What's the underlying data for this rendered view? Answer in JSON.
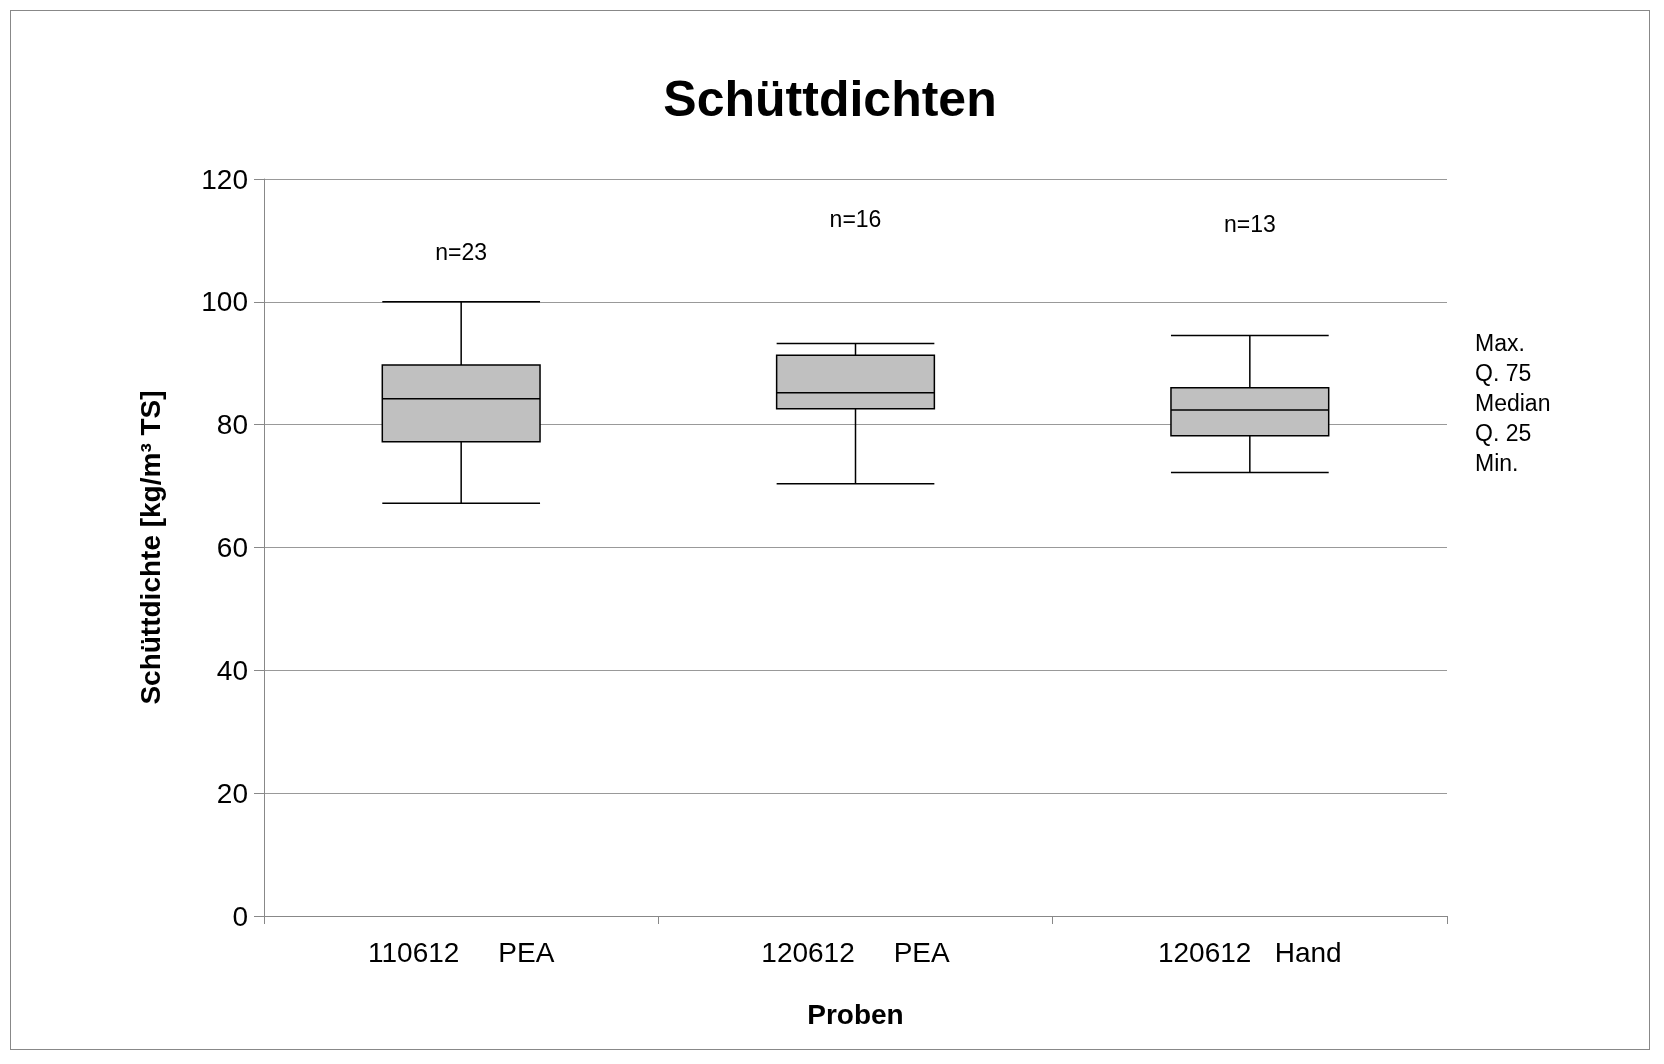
{
  "chart_data": {
    "type": "box",
    "title": "Schüttdichten",
    "xlabel": "Proben",
    "ylabel": "Schüttdichte [kg/m³ TS]",
    "categories": [
      "110612     PEA",
      "120612     PEA",
      "120612   Hand"
    ],
    "boxes": [
      {
        "low": 67.2,
        "q1": 77.2,
        "median": 84.2,
        "q3": 89.7,
        "high": 100
      },
      {
        "low": 70.4,
        "q1": 82.6,
        "median": 85.2,
        "q3": 91.3,
        "high": 93.2
      },
      {
        "low": 72.2,
        "q1": 78.2,
        "median": 82.4,
        "q3": 86.0,
        "high": 94.5
      }
    ],
    "color": "#c0c0c0",
    "ylim": [
      0,
      120
    ],
    "yticks": [
      0,
      20,
      40,
      60,
      80,
      100,
      120
    ],
    "grid": "y",
    "annotations": [
      "n=23",
      "n=16",
      "n=13",
      "Max.",
      "Q. 75",
      "Median",
      "Q. 25",
      "Min."
    ]
  }
}
